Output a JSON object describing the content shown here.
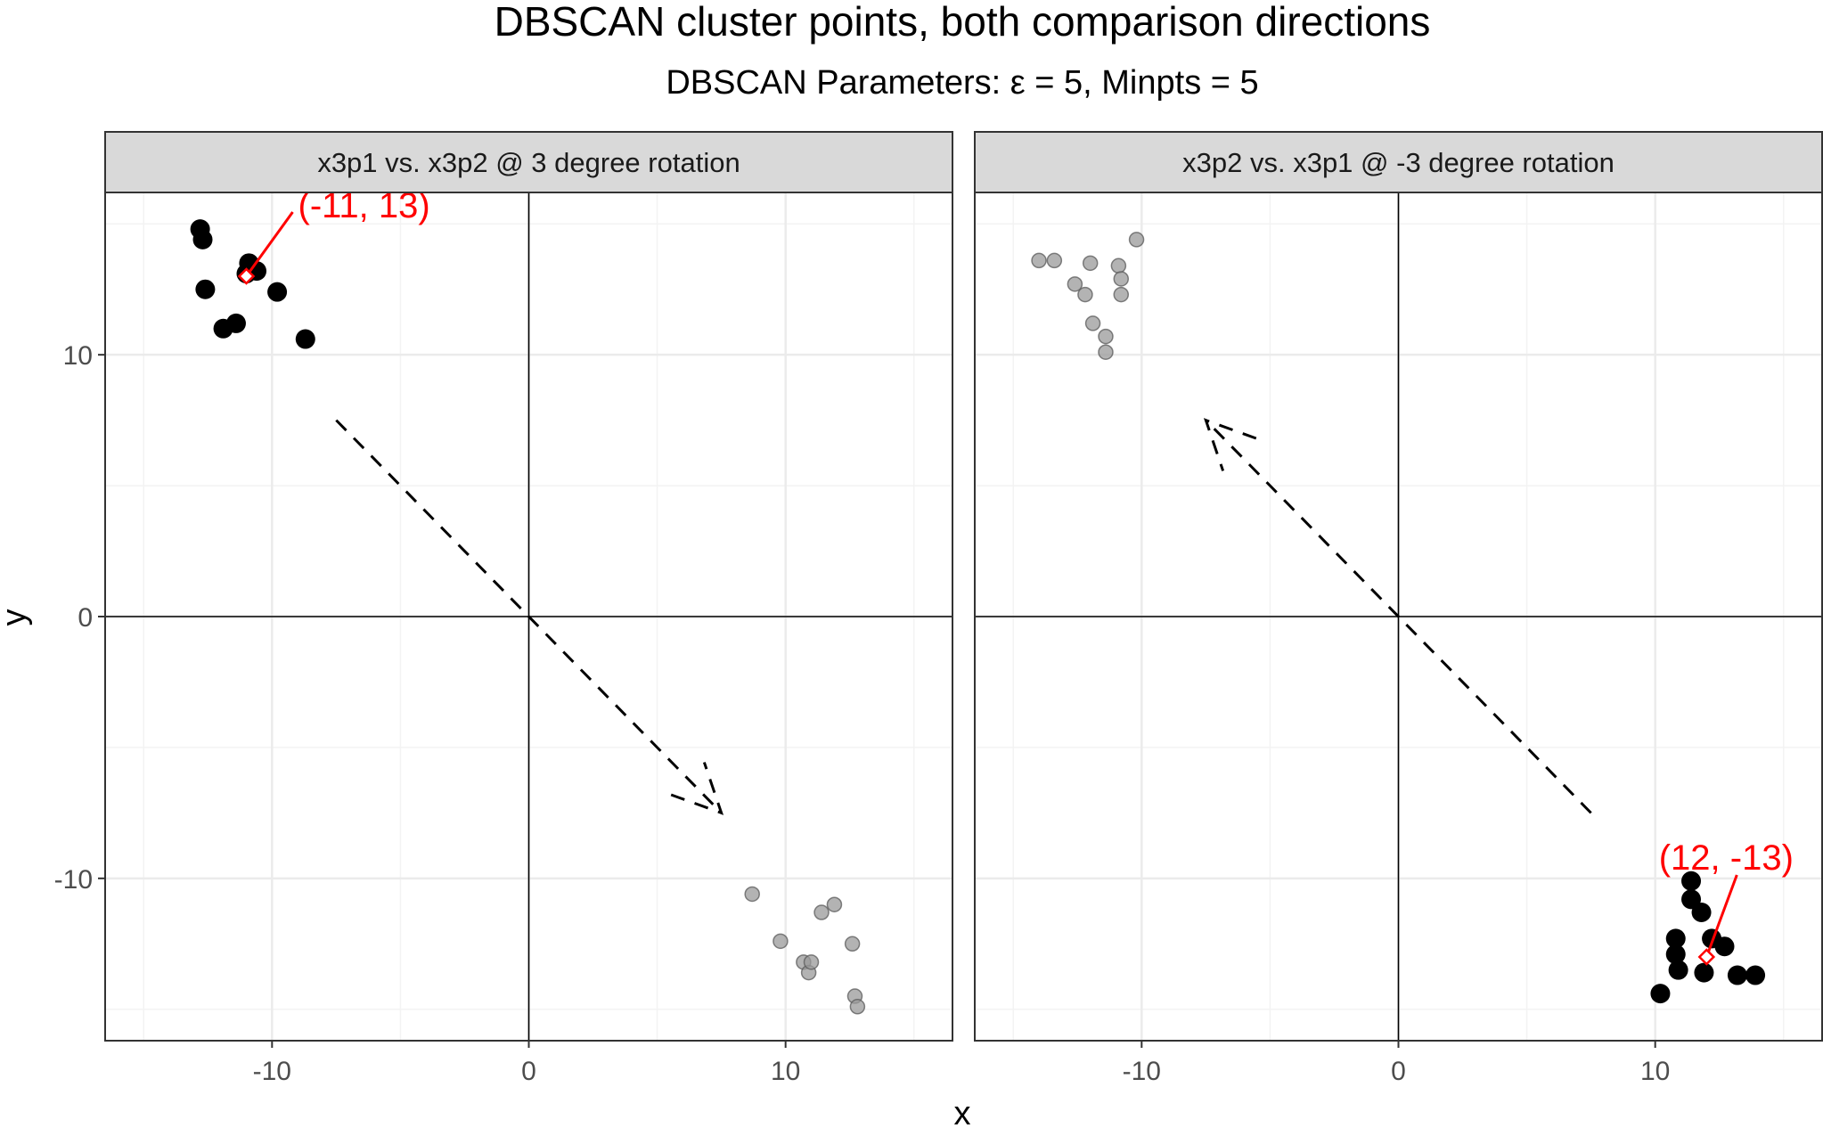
{
  "chart_data": {
    "type": "scatter",
    "title": "DBSCAN cluster points, both comparison directions",
    "subtitle": "DBSCAN Parameters:  ε  = 5, Minpts = 5",
    "xlabel": "x",
    "ylabel": "y",
    "xlim": [
      -16.5,
      16.5
    ],
    "ylim": [
      -16.2,
      16.2
    ],
    "x_ticks": [
      -10,
      0,
      10
    ],
    "y_ticks": [
      -10,
      0,
      10
    ],
    "x_tick_labels": [
      "-10",
      "0",
      "10"
    ],
    "y_tick_labels": [
      "-10",
      "0",
      "10"
    ],
    "grid": true,
    "colors": {
      "cluster": "#000000",
      "other": "#999999",
      "annotation": "#ff0000",
      "strip_bg": "#d9d9d9",
      "grid_major": "#ebebeb",
      "grid_minor": "#f3f3f3"
    },
    "panels": [
      {
        "strip": "x3p1 vs. x3p2 @ 3 degree rotation",
        "cluster_points": [
          [
            -12.8,
            14.8
          ],
          [
            -12.7,
            14.4
          ],
          [
            -12.6,
            12.5
          ],
          [
            -11.9,
            11.0
          ],
          [
            -11.4,
            11.2
          ],
          [
            -10.9,
            13.5
          ],
          [
            -10.6,
            13.2
          ],
          [
            -11.0,
            13.1
          ],
          [
            -9.8,
            12.4
          ],
          [
            -8.7,
            10.6
          ]
        ],
        "other_points": [
          [
            8.7,
            -10.6
          ],
          [
            9.8,
            -12.4
          ],
          [
            10.7,
            -13.2
          ],
          [
            10.9,
            -13.6
          ],
          [
            11.0,
            -13.2
          ],
          [
            11.4,
            -11.3
          ],
          [
            11.9,
            -11.0
          ],
          [
            12.6,
            -12.5
          ],
          [
            12.7,
            -14.5
          ],
          [
            12.8,
            -14.9
          ]
        ],
        "arrow": {
          "from": [
            -7.5,
            7.5
          ],
          "to": [
            7.5,
            -7.5
          ]
        },
        "center": {
          "x": -11,
          "y": 13,
          "label": "(-11, 13)"
        }
      },
      {
        "strip": "x3p2 vs. x3p1 @ -3 degree rotation",
        "cluster_points": [
          [
            10.2,
            -14.4
          ],
          [
            10.8,
            -12.3
          ],
          [
            10.8,
            -12.9
          ],
          [
            10.9,
            -13.5
          ],
          [
            11.4,
            -10.1
          ],
          [
            11.4,
            -10.8
          ],
          [
            11.8,
            -11.3
          ],
          [
            12.2,
            -12.3
          ],
          [
            11.9,
            -13.6
          ],
          [
            12.7,
            -12.6
          ],
          [
            13.2,
            -13.7
          ],
          [
            13.9,
            -13.7
          ]
        ],
        "other_points": [
          [
            -14.0,
            13.6
          ],
          [
            -13.4,
            13.6
          ],
          [
            -12.6,
            12.7
          ],
          [
            -12.2,
            12.3
          ],
          [
            -12.0,
            13.5
          ],
          [
            -11.9,
            11.2
          ],
          [
            -11.4,
            10.7
          ],
          [
            -11.4,
            10.1
          ],
          [
            -10.9,
            13.4
          ],
          [
            -10.8,
            12.9
          ],
          [
            -10.8,
            12.3
          ],
          [
            -10.2,
            14.4
          ]
        ],
        "arrow": {
          "from": [
            7.5,
            -7.5
          ],
          "to": [
            -7.5,
            7.5
          ]
        },
        "center": {
          "x": 12,
          "y": -13,
          "label": "(12, -13)"
        }
      }
    ]
  }
}
